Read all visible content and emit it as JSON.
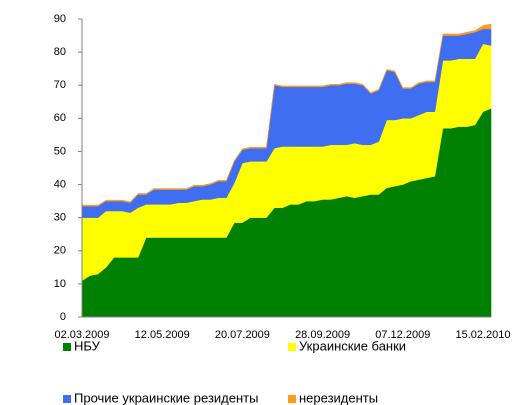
{
  "chart_data": {
    "type": "area",
    "stacked": true,
    "legend": "bottom",
    "grid": false,
    "categories": [
      "02.03.2009",
      null,
      null,
      null,
      null,
      null,
      null,
      null,
      null,
      null,
      "12.05.2009",
      null,
      null,
      null,
      null,
      null,
      null,
      null,
      null,
      null,
      "20.07.2009",
      null,
      null,
      null,
      null,
      null,
      null,
      null,
      null,
      null,
      "28.09.2009",
      null,
      null,
      null,
      null,
      null,
      null,
      null,
      null,
      null,
      "07.12.2009",
      null,
      null,
      null,
      null,
      null,
      null,
      null,
      null,
      null,
      "15.02.2010",
      null
    ],
    "ylim": [
      0,
      90
    ],
    "yticks": [
      0,
      10,
      20,
      30,
      40,
      50,
      60,
      70,
      80,
      90
    ],
    "series": [
      {
        "name": "НБУ",
        "color": "#008000",
        "values": [
          11,
          12.5,
          13,
          15,
          18,
          18,
          18,
          18,
          24,
          24,
          24,
          24,
          24,
          24,
          24,
          24,
          24,
          24,
          24,
          28.5,
          28.5,
          30,
          30,
          30,
          33,
          33,
          34,
          34,
          35,
          35,
          35.5,
          35.5,
          36,
          36.5,
          36,
          36.5,
          37,
          37,
          39,
          39.5,
          40,
          41,
          41.5,
          42,
          42.5,
          57,
          57,
          57.5,
          57.5,
          58,
          62,
          63
        ]
      },
      {
        "name": "Украинские банки",
        "color": "#ffff00",
        "values": [
          19,
          17.5,
          17,
          17,
          14,
          14,
          13.5,
          15,
          10,
          10,
          10,
          10,
          10.5,
          10.5,
          11,
          11.5,
          11.5,
          12,
          12,
          12,
          18,
          17,
          17,
          17,
          18,
          18.5,
          17.5,
          17.5,
          16.5,
          16.5,
          16,
          16.5,
          16,
          15.5,
          16.5,
          15.5,
          15,
          16,
          20.5,
          20,
          20,
          19,
          19.5,
          20,
          19.5,
          20.5,
          20.5,
          20.5,
          20.5,
          20,
          20.5,
          19
        ]
      },
      {
        "name": "Прочие украинские резиденты",
        "color": "#3f6ef0",
        "values": [
          3.5,
          3.5,
          3.5,
          3,
          3,
          3,
          3,
          4,
          3,
          4.5,
          4.5,
          4.5,
          4,
          4,
          4.5,
          4,
          4.5,
          5,
          5,
          6.5,
          4,
          4,
          4,
          4,
          19,
          18,
          18,
          18,
          18,
          18,
          18,
          18,
          18,
          18.5,
          18,
          18,
          15.5,
          15.5,
          15,
          14.5,
          9,
          9,
          9.5,
          9,
          9,
          7.5,
          7.5,
          7,
          7.5,
          8,
          4.5,
          5
        ]
      },
      {
        "name": "нерезиденты",
        "color": "#ff9a1f",
        "values": [
          0.3,
          0.3,
          0.3,
          0.3,
          0.3,
          0.3,
          0.3,
          0.3,
          0.3,
          0.3,
          0.3,
          0.3,
          0.3,
          0.3,
          0.3,
          0.3,
          0.3,
          0.3,
          0.3,
          0.3,
          0.3,
          0.3,
          0.3,
          0.3,
          0.3,
          0.3,
          0.3,
          0.3,
          0.3,
          0.3,
          0.3,
          0.3,
          0.3,
          0.3,
          0.3,
          0.3,
          0.3,
          0.3,
          0.3,
          0.3,
          0.3,
          0.3,
          0.3,
          0.3,
          0.3,
          0.5,
          0.5,
          0.5,
          0.5,
          0.5,
          1,
          1.5
        ]
      }
    ]
  }
}
